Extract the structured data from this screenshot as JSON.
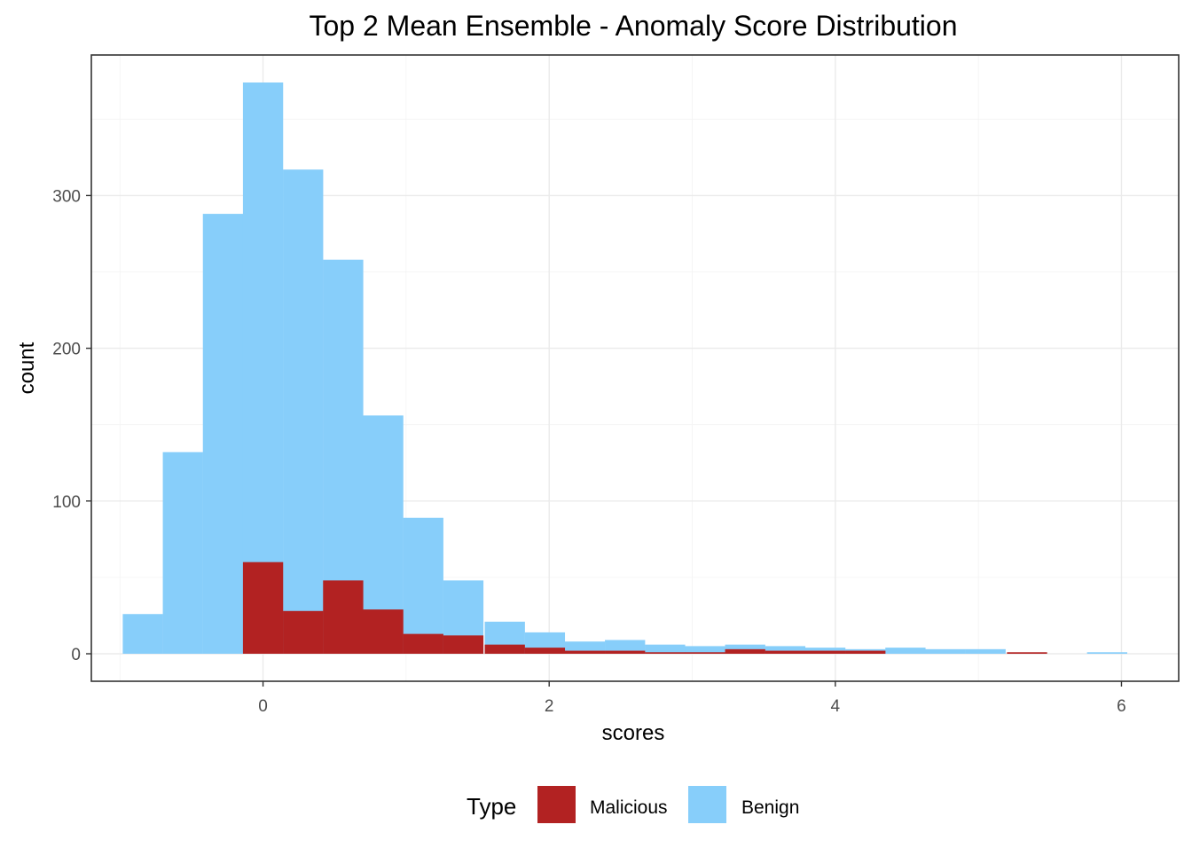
{
  "chart_data": {
    "type": "bar",
    "subtype": "histogram-overlay",
    "title": "Top 2 Mean Ensemble - Anomaly Score Distribution",
    "xlabel": "scores",
    "ylabel": "count",
    "xlim": [
      -1.2,
      6.4
    ],
    "ylim": [
      -18,
      392
    ],
    "x_ticks": [
      0,
      2,
      4,
      6
    ],
    "y_ticks": [
      0,
      100,
      200,
      300
    ],
    "grid": true,
    "legend": {
      "title": "Type",
      "position": "bottom"
    },
    "bin_width": 0.281,
    "x": [
      -0.84,
      -0.56,
      -0.28,
      0.0,
      0.28,
      0.56,
      0.84,
      1.12,
      1.4,
      1.69,
      1.97,
      2.25,
      2.53,
      2.81,
      3.09,
      3.37,
      3.65,
      3.93,
      4.21,
      4.49,
      4.77,
      5.05,
      5.34,
      5.62,
      5.9
    ],
    "series": [
      {
        "name": "Malicious",
        "color": "#B22222",
        "values": [
          0,
          0,
          0,
          60,
          28,
          48,
          29,
          13,
          12,
          6,
          4,
          2,
          2,
          1,
          1,
          3,
          2,
          2,
          2,
          0,
          0,
          0,
          1,
          0,
          0
        ]
      },
      {
        "name": "Benign",
        "color": "#87CEFA",
        "values": [
          26,
          132,
          288,
          374,
          317,
          258,
          156,
          89,
          48,
          21,
          14,
          8,
          9,
          6,
          5,
          6,
          5,
          4,
          3,
          4,
          3,
          3,
          0,
          0,
          1
        ]
      }
    ]
  }
}
